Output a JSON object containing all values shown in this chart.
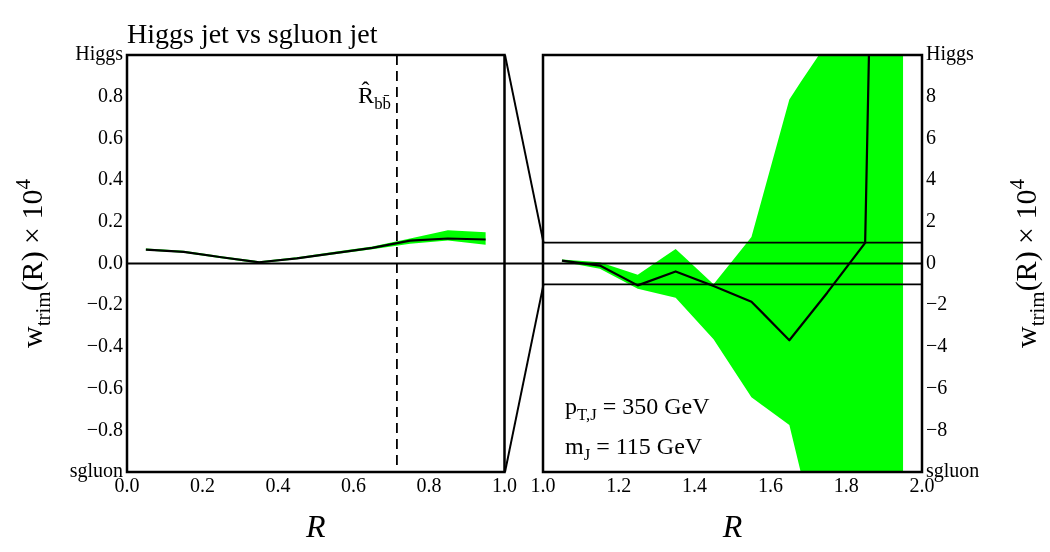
{
  "chart_data": [
    {
      "type": "line",
      "title": "Higgs jet vs sgluon jet",
      "xlabel": "R",
      "ylabel": "w$_{trim}$(R) × 10$^{4}$",
      "x": [
        0.05,
        0.15,
        0.25,
        0.35,
        0.45,
        0.55,
        0.65,
        0.75,
        0.85,
        0.95
      ],
      "series": [
        {
          "color": "#000000",
          "values": [
            0.067,
            0.056,
            0.03,
            0.006,
            0.025,
            0.05,
            0.075,
            0.11,
            0.12,
            0.115
          ],
          "lower": [
            0.062,
            0.051,
            0.025,
            0.001,
            0.02,
            0.044,
            0.068,
            0.095,
            0.11,
            0.09
          ],
          "upper": [
            0.072,
            0.061,
            0.035,
            0.011,
            0.03,
            0.056,
            0.082,
            0.12,
            0.16,
            0.15
          ]
        }
      ],
      "xlim": [
        0,
        1
      ],
      "xticks": [
        {
          "value": 0,
          "label": "0.0"
        },
        {
          "value": 0.2,
          "label": "0.2"
        },
        {
          "value": 0.4,
          "label": "0.4"
        },
        {
          "value": 0.6,
          "label": "0.6"
        },
        {
          "value": 0.8,
          "label": "0.8"
        },
        {
          "value": 1,
          "label": "1.0"
        }
      ],
      "ylim": [
        -1,
        1
      ],
      "yticks": [
        {
          "value": -1,
          "label": "sgluon"
        },
        {
          "value": -0.8,
          "label": "−0.8"
        },
        {
          "value": -0.6,
          "label": "−0.6"
        },
        {
          "value": -0.4,
          "label": "−0.4"
        },
        {
          "value": -0.2,
          "label": "−0.2"
        },
        {
          "value": 0,
          "label": "0.0"
        },
        0.2,
        0.4,
        0.6,
        0.8,
        {
          "value": 1,
          "label": "Higgs"
        }
      ],
      "ref_lines": [
        {
          "axis": "y",
          "value": 0
        },
        {
          "axis": "x",
          "value": 0.715,
          "label": "R̂$_{bb̄}$",
          "line_style": "dashed"
        }
      ],
      "grid": false,
      "legend": false,
      "marker": "none"
    },
    {
      "type": "line",
      "xlabel": "R",
      "y2label": "w$_{trim}$(R) × 10$^{4}$",
      "series": [
        {
          "color": "#000000",
          "axis": "y2",
          "x": [
            1.05,
            1.15,
            1.25,
            1.35,
            1.45,
            1.55,
            1.65,
            1.68,
            1.728,
            1.75,
            1.85,
            1.86,
            1.95
          ],
          "values": [
            0.14,
            -0.1,
            -1.05,
            -0.38,
            -1.08,
            -1.83,
            -3.68,
            null,
            null,
            -1.4,
            0.99,
            10,
            null
          ],
          "lower": [
            0.08,
            -0.25,
            -1.21,
            -1.64,
            -3.63,
            -6.42,
            -7.75,
            -10,
            -10,
            -10,
            -10,
            -10,
            -10
          ],
          "upper": [
            0.19,
            0.06,
            -0.54,
            0.7,
            -1.0,
            1.27,
            7.87,
            8.7,
            10,
            10,
            10,
            10,
            10
          ]
        }
      ],
      "xlim": [
        1,
        2
      ],
      "xticks": [
        {
          "value": 1,
          "label": "1.0"
        },
        {
          "value": 1.2,
          "label": "1.2"
        },
        {
          "value": 1.4,
          "label": "1.4"
        },
        {
          "value": 1.6,
          "label": "1.6"
        },
        {
          "value": 1.8,
          "label": "1.8"
        },
        {
          "value": 2,
          "label": "2.0"
        }
      ],
      "y2lim": [
        -10,
        10
      ],
      "y2ticks": [
        {
          "value": -10,
          "label": "sgluon"
        },
        {
          "value": -8,
          "label": "−8"
        },
        {
          "value": -6,
          "label": "−6"
        },
        {
          "value": -4,
          "label": "−4"
        },
        {
          "value": -2,
          "label": "−2"
        },
        0,
        2,
        4,
        6,
        8,
        {
          "value": 10,
          "label": "Higgs"
        }
      ],
      "ref_lines": [
        {
          "axis": "y2",
          "value": 0
        },
        {
          "axis": "y2",
          "value": 1
        },
        {
          "axis": "y2",
          "value": -1
        }
      ],
      "annotations": [
        "p$_{T,J}$ = 350 GeV",
        "m$_{J}$ = 115 GeV"
      ],
      "grid": false,
      "legend": false,
      "marker": "none"
    }
  ]
}
